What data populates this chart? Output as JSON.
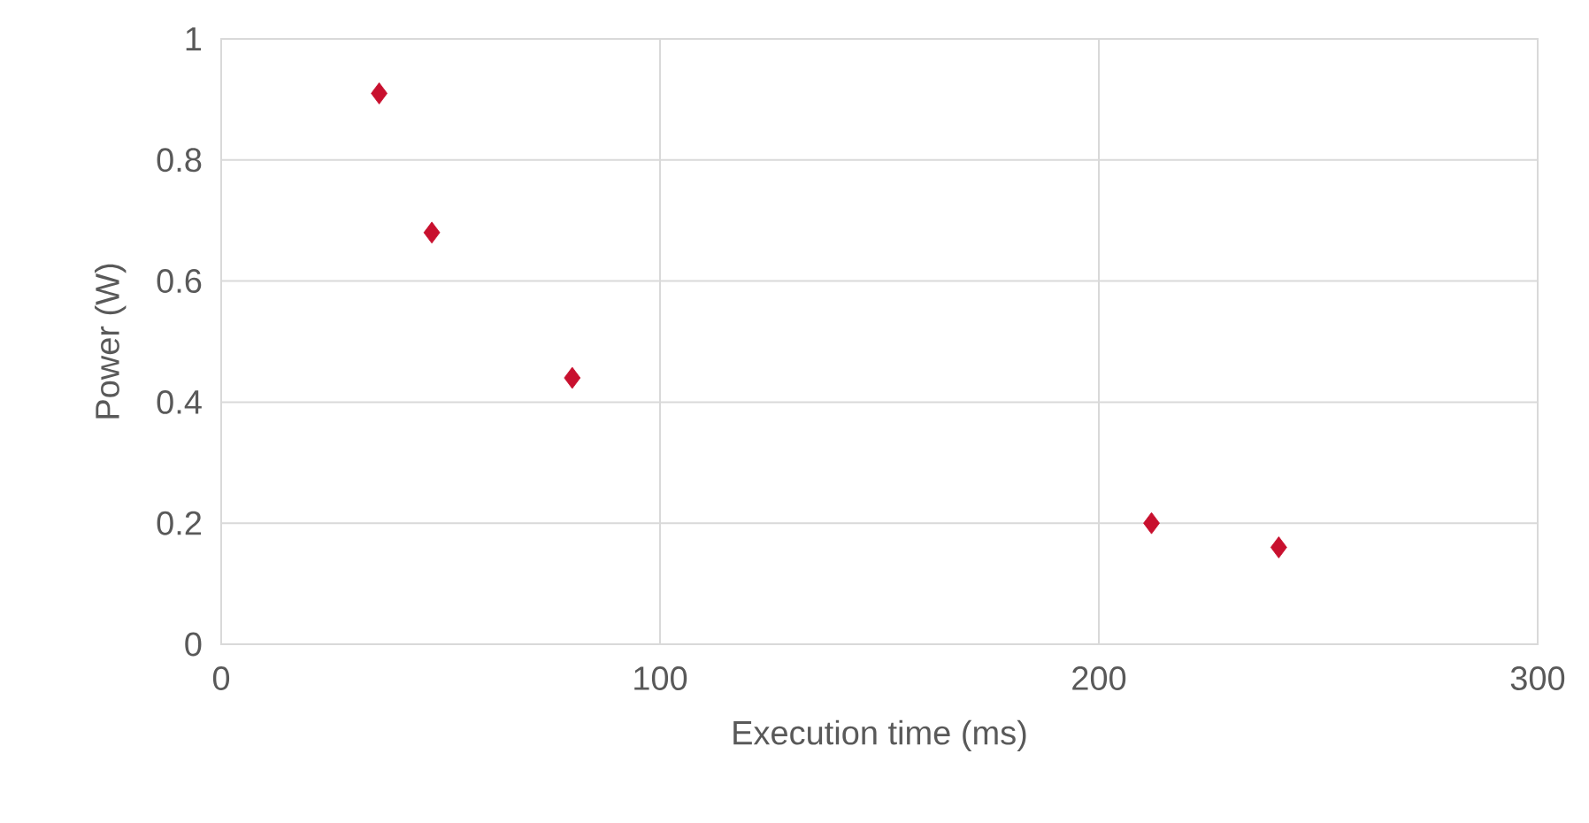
{
  "chart_data": {
    "type": "scatter",
    "xlabel": "Execution time (ms)",
    "ylabel": "Power (W)",
    "x": [
      36,
      48,
      80,
      212,
      241
    ],
    "series": [
      {
        "color": "#c8102e",
        "values": [
          0.91,
          0.68,
          0.44,
          0.2,
          0.16
        ]
      }
    ],
    "xlim": [
      0,
      300
    ],
    "xticks": [
      0,
      100,
      200,
      300
    ],
    "ylim": [
      0,
      1
    ],
    "yticks": [
      0,
      0.2,
      0.4,
      0.6,
      0.8,
      1
    ],
    "grid": true,
    "legend": false,
    "marker": "diamond"
  }
}
